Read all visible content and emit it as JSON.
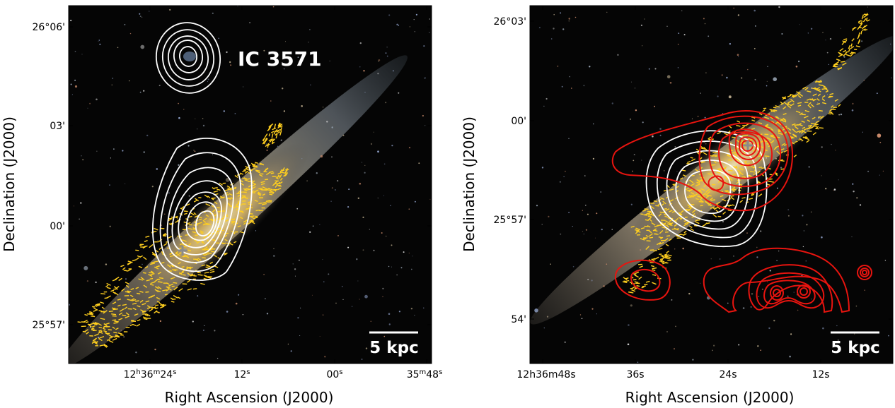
{
  "left_panel": {
    "ylabel": "Declination (J2000)",
    "xlabel": "Right Ascension (J2000)",
    "yticks": [
      "26°06'",
      "03'",
      "00'",
      "25°57'"
    ],
    "xticks": [
      "12h36m24s",
      "12s",
      "00s",
      "35m48s"
    ],
    "xticks_parts": [
      {
        "main": "12",
        "s1": "h",
        "m1": "36",
        "s2": "m",
        "m2": "24",
        "s3": "s"
      },
      {
        "main": "12",
        "s3": "s"
      },
      {
        "main": "00",
        "s3": "s"
      },
      {
        "main": "35",
        "s2": "m",
        "m2": "48",
        "s3": "s"
      }
    ],
    "label_ic": "IC 3571",
    "scalebar": "5 kpc"
  },
  "right_panel": {
    "ylabel": "Declination (J2000)",
    "xlabel": "Right Ascension (J2000)",
    "yticks": [
      "26°03'",
      "00'",
      "25°57'",
      "54'"
    ],
    "xticks": [
      "12h36m48s",
      "36s",
      "24s",
      "12s"
    ],
    "scalebar": "5 kpc"
  },
  "colors": {
    "sky": "#050505",
    "vectors": "#ffcf1f",
    "contour_white": "#ffffff",
    "contour_red": "#e8140f",
    "galaxy_core": "#ffd86a",
    "marker": "#8a8a8a"
  }
}
